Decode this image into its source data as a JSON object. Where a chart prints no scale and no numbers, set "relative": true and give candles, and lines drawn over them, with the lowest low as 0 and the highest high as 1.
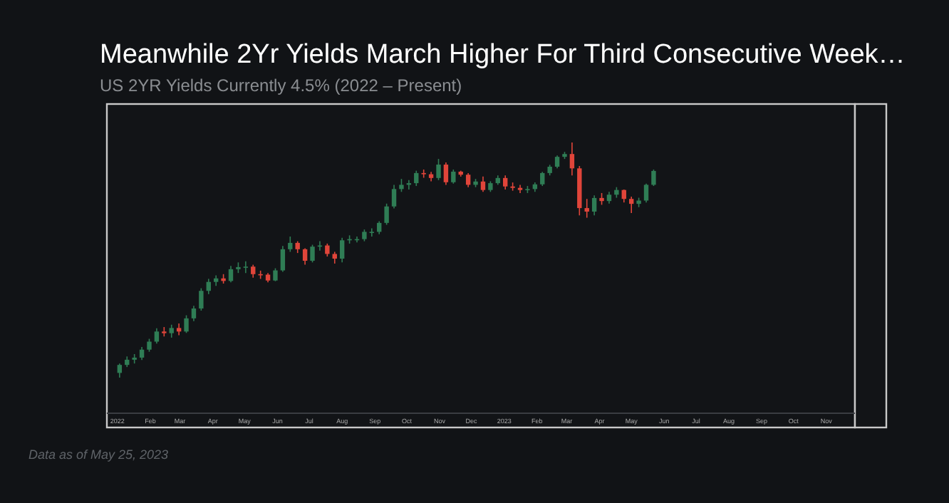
{
  "chart_data": {
    "type": "candlestick",
    "title": "Meanwhile 2Yr Yields March Higher For Third Consecutive Week…",
    "subtitle": "US 2YR Yields Currently 4.5% (2022 – Present)",
    "annotations": [
      "Data as of May 25, 2023"
    ],
    "relative": true,
    "xlim": [
      "2021-12-22",
      "2023-11-28"
    ],
    "xticks": [
      {
        "value": "2022-01-01",
        "label": "2022"
      },
      {
        "value": "2022-02-01",
        "label": "Feb"
      },
      {
        "value": "2022-03-01",
        "label": "Mar"
      },
      {
        "value": "2022-04-01",
        "label": "Apr"
      },
      {
        "value": "2022-05-01",
        "label": "May"
      },
      {
        "value": "2022-06-01",
        "label": "Jun"
      },
      {
        "value": "2022-07-01",
        "label": "Jul"
      },
      {
        "value": "2022-08-01",
        "label": "Aug"
      },
      {
        "value": "2022-09-01",
        "label": "Sep"
      },
      {
        "value": "2022-10-01",
        "label": "Oct"
      },
      {
        "value": "2022-11-01",
        "label": "Nov"
      },
      {
        "value": "2022-12-01",
        "label": "Dec"
      },
      {
        "value": "2023-01-01",
        "label": "2023"
      },
      {
        "value": "2023-02-01",
        "label": "Feb"
      },
      {
        "value": "2023-03-01",
        "label": "Mar"
      },
      {
        "value": "2023-04-01",
        "label": "Apr"
      },
      {
        "value": "2023-05-01",
        "label": "May"
      },
      {
        "value": "2023-06-01",
        "label": "Jun"
      },
      {
        "value": "2023-07-01",
        "label": "Jul"
      },
      {
        "value": "2023-08-01",
        "label": "Aug"
      },
      {
        "value": "2023-09-01",
        "label": "Sep"
      },
      {
        "value": "2023-10-01",
        "label": "Oct"
      },
      {
        "value": "2023-11-01",
        "label": "Nov"
      }
    ],
    "x": [
      "2022-01-03",
      "2022-01-10",
      "2022-01-17",
      "2022-01-24",
      "2022-01-31",
      "2022-02-07",
      "2022-02-14",
      "2022-02-21",
      "2022-02-28",
      "2022-03-07",
      "2022-03-14",
      "2022-03-21",
      "2022-03-28",
      "2022-04-04",
      "2022-04-11",
      "2022-04-18",
      "2022-04-25",
      "2022-05-02",
      "2022-05-09",
      "2022-05-16",
      "2022-05-23",
      "2022-05-30",
      "2022-06-06",
      "2022-06-13",
      "2022-06-20",
      "2022-06-27",
      "2022-07-04",
      "2022-07-11",
      "2022-07-18",
      "2022-07-25",
      "2022-08-01",
      "2022-08-08",
      "2022-08-15",
      "2022-08-22",
      "2022-08-29",
      "2022-09-05",
      "2022-09-12",
      "2022-09-19",
      "2022-09-26",
      "2022-10-03",
      "2022-10-10",
      "2022-10-17",
      "2022-10-24",
      "2022-10-31",
      "2022-11-07",
      "2022-11-14",
      "2022-11-21",
      "2022-11-28",
      "2022-12-05",
      "2022-12-12",
      "2022-12-19",
      "2022-12-26",
      "2023-01-02",
      "2023-01-09",
      "2023-01-16",
      "2023-01-23",
      "2023-01-30",
      "2023-02-06",
      "2023-02-13",
      "2023-02-20",
      "2023-02-27",
      "2023-03-06",
      "2023-03-13",
      "2023-03-20",
      "2023-03-27",
      "2023-04-03",
      "2023-04-10",
      "2023-04-17",
      "2023-04-24",
      "2023-05-01",
      "2023-05-08",
      "2023-05-15",
      "2023-05-22"
    ],
    "ohlc": [
      [
        0.02,
        0.06,
        0.0,
        0.054
      ],
      [
        0.054,
        0.09,
        0.045,
        0.076
      ],
      [
        0.076,
        0.1,
        0.06,
        0.085
      ],
      [
        0.085,
        0.13,
        0.075,
        0.119
      ],
      [
        0.119,
        0.165,
        0.11,
        0.153
      ],
      [
        0.153,
        0.21,
        0.145,
        0.196
      ],
      [
        0.196,
        0.215,
        0.175,
        0.189
      ],
      [
        0.189,
        0.225,
        0.17,
        0.211
      ],
      [
        0.211,
        0.23,
        0.18,
        0.196
      ],
      [
        0.196,
        0.265,
        0.19,
        0.252
      ],
      [
        0.252,
        0.305,
        0.24,
        0.294
      ],
      [
        0.294,
        0.38,
        0.285,
        0.369
      ],
      [
        0.369,
        0.42,
        0.355,
        0.407
      ],
      [
        0.407,
        0.435,
        0.39,
        0.422
      ],
      [
        0.422,
        0.44,
        0.4,
        0.411
      ],
      [
        0.411,
        0.475,
        0.405,
        0.461
      ],
      [
        0.461,
        0.49,
        0.445,
        0.47
      ],
      [
        0.47,
        0.495,
        0.445,
        0.472
      ],
      [
        0.472,
        0.48,
        0.425,
        0.44
      ],
      [
        0.44,
        0.455,
        0.42,
        0.438
      ],
      [
        0.438,
        0.445,
        0.405,
        0.413
      ],
      [
        0.413,
        0.465,
        0.41,
        0.456
      ],
      [
        0.456,
        0.56,
        0.45,
        0.546
      ],
      [
        0.546,
        0.6,
        0.535,
        0.573
      ],
      [
        0.573,
        0.58,
        0.53,
        0.546
      ],
      [
        0.546,
        0.55,
        0.48,
        0.497
      ],
      [
        0.497,
        0.565,
        0.49,
        0.557
      ],
      [
        0.557,
        0.58,
        0.54,
        0.562
      ],
      [
        0.562,
        0.57,
        0.515,
        0.526
      ],
      [
        0.526,
        0.535,
        0.485,
        0.506
      ],
      [
        0.506,
        0.595,
        0.49,
        0.584
      ],
      [
        0.584,
        0.605,
        0.57,
        0.589
      ],
      [
        0.589,
        0.6,
        0.575,
        0.589
      ],
      [
        0.589,
        0.63,
        0.58,
        0.62
      ],
      [
        0.62,
        0.635,
        0.6,
        0.62
      ],
      [
        0.62,
        0.665,
        0.61,
        0.658
      ],
      [
        0.658,
        0.74,
        0.65,
        0.728
      ],
      [
        0.728,
        0.82,
        0.72,
        0.802
      ],
      [
        0.802,
        0.845,
        0.79,
        0.82
      ],
      [
        0.82,
        0.84,
        0.8,
        0.827
      ],
      [
        0.827,
        0.88,
        0.815,
        0.87
      ],
      [
        0.87,
        0.885,
        0.85,
        0.865
      ],
      [
        0.865,
        0.875,
        0.835,
        0.849
      ],
      [
        0.849,
        0.93,
        0.84,
        0.906
      ],
      [
        0.906,
        0.915,
        0.82,
        0.831
      ],
      [
        0.831,
        0.885,
        0.825,
        0.876
      ],
      [
        0.876,
        0.88,
        0.855,
        0.863
      ],
      [
        0.863,
        0.87,
        0.81,
        0.82
      ],
      [
        0.82,
        0.845,
        0.81,
        0.834
      ],
      [
        0.834,
        0.855,
        0.79,
        0.798
      ],
      [
        0.798,
        0.835,
        0.79,
        0.827
      ],
      [
        0.827,
        0.86,
        0.82,
        0.849
      ],
      [
        0.849,
        0.86,
        0.8,
        0.813
      ],
      [
        0.813,
        0.83,
        0.795,
        0.807
      ],
      [
        0.807,
        0.82,
        0.785,
        0.798
      ],
      [
        0.798,
        0.815,
        0.785,
        0.802
      ],
      [
        0.802,
        0.83,
        0.79,
        0.822
      ],
      [
        0.822,
        0.875,
        0.815,
        0.87
      ],
      [
        0.87,
        0.905,
        0.86,
        0.897
      ],
      [
        0.897,
        0.945,
        0.89,
        0.939
      ],
      [
        0.939,
        0.96,
        0.93,
        0.951
      ],
      [
        0.951,
        1.0,
        0.86,
        0.89
      ],
      [
        0.89,
        0.9,
        0.69,
        0.721
      ],
      [
        0.721,
        0.76,
        0.68,
        0.706
      ],
      [
        0.706,
        0.775,
        0.69,
        0.764
      ],
      [
        0.764,
        0.785,
        0.735,
        0.751
      ],
      [
        0.751,
        0.79,
        0.74,
        0.778
      ],
      [
        0.778,
        0.81,
        0.765,
        0.798
      ],
      [
        0.798,
        0.8,
        0.745,
        0.76
      ],
      [
        0.76,
        0.77,
        0.7,
        0.739
      ],
      [
        0.739,
        0.765,
        0.725,
        0.753
      ],
      [
        0.753,
        0.825,
        0.745,
        0.82
      ],
      [
        0.82,
        0.885,
        0.815,
        0.879
      ]
    ],
    "colors": [
      "#2f7d55",
      "#2f7d55",
      "#2f7d55",
      "#2f7d55",
      "#2f7d55",
      "#2f7d55",
      "#e0453a",
      "#2f7d55",
      "#e0453a",
      "#2f7d55",
      "#2f7d55",
      "#2f7d55",
      "#2f7d55",
      "#2f7d55",
      "#e0453a",
      "#2f7d55",
      "#2f7d55",
      "#2f7d55",
      "#e0453a",
      "#e0453a",
      "#e0453a",
      "#2f7d55",
      "#2f7d55",
      "#2f7d55",
      "#e0453a",
      "#e0453a",
      "#2f7d55",
      "#2f7d55",
      "#e0453a",
      "#e0453a",
      "#2f7d55",
      "#2f7d55",
      "#2f7d55",
      "#2f7d55",
      "#2f7d55",
      "#2f7d55",
      "#2f7d55",
      "#2f7d55",
      "#2f7d55",
      "#2f7d55",
      "#2f7d55",
      "#e0453a",
      "#e0453a",
      "#2f7d55",
      "#e0453a",
      "#2f7d55",
      "#e0453a",
      "#e0453a",
      "#2f7d55",
      "#e0453a",
      "#2f7d55",
      "#2f7d55",
      "#e0453a",
      "#e0453a",
      "#e0453a",
      "#2f7d55",
      "#2f7d55",
      "#2f7d55",
      "#2f7d55",
      "#2f7d55",
      "#2f7d55",
      "#e0453a",
      "#e0453a",
      "#e0453a",
      "#2f7d55",
      "#e0453a",
      "#2f7d55",
      "#2f7d55",
      "#e0453a",
      "#e0453a",
      "#2f7d55",
      "#2f7d55",
      "#2f7d55"
    ]
  }
}
